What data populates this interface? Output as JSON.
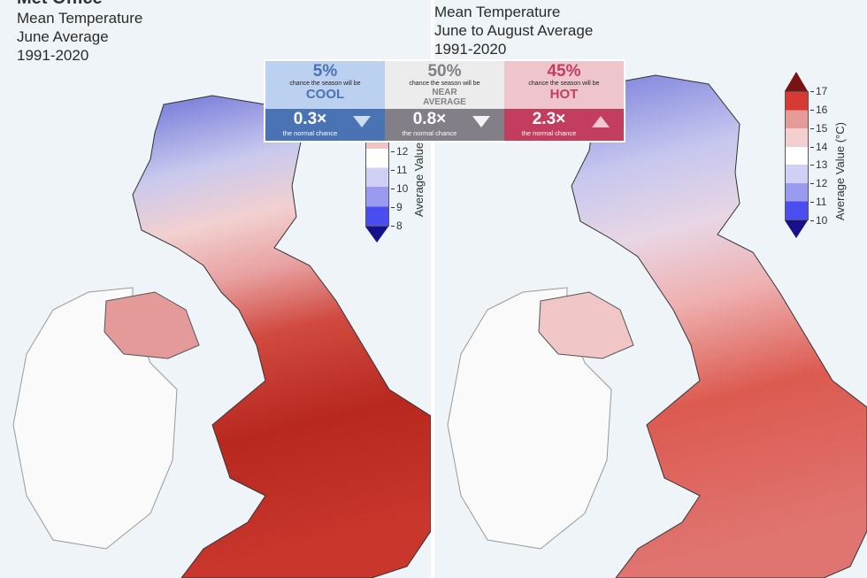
{
  "left_map": {
    "logo": "Met Office",
    "title_lines": [
      "Mean Temperature",
      "June Average",
      "1991-2020"
    ],
    "legend": {
      "label": "Average Value",
      "ticks": [
        "12",
        "11",
        "10",
        "9",
        "8"
      ]
    }
  },
  "right_map": {
    "title_lines": [
      "Mean Temperature",
      "June to August Average",
      "1991-2020"
    ],
    "legend": {
      "label": "Average Value (°C)",
      "ticks": [
        "17",
        "16",
        "15",
        "14",
        "13",
        "12",
        "11",
        "10"
      ],
      "colors": [
        "#7a1414",
        "#d73a33",
        "#e79b99",
        "#f4cfd0",
        "#ffffff",
        "#d0d0f6",
        "#9a9af0",
        "#4a4ef0",
        "#17108c"
      ]
    }
  },
  "forecast": [
    {
      "percent": "5%",
      "chance_text": "chance the season will be",
      "category": "COOL",
      "multiplier": "0.3×",
      "normal_text": "the normal chance",
      "direction": "down",
      "top_color": "#bcd0ef",
      "bottom_color": "#4a73b4",
      "text_color": "#4a73b4"
    },
    {
      "percent": "50%",
      "chance_text": "chance the season will be",
      "category_lines": [
        "NEAR",
        "AVERAGE"
      ],
      "multiplier": "0.8×",
      "normal_text": "the normal chance",
      "direction": "down",
      "top_color": "#ececec",
      "bottom_color": "#837f88",
      "text_color": "#837f88"
    },
    {
      "percent": "45%",
      "chance_text": "chance the season will be",
      "category": "HOT",
      "multiplier": "2.3×",
      "normal_text": "the normal chance",
      "direction": "up",
      "top_color": "#efc5cd",
      "bottom_color": "#c23d5e",
      "text_color": "#c23d5e"
    }
  ]
}
